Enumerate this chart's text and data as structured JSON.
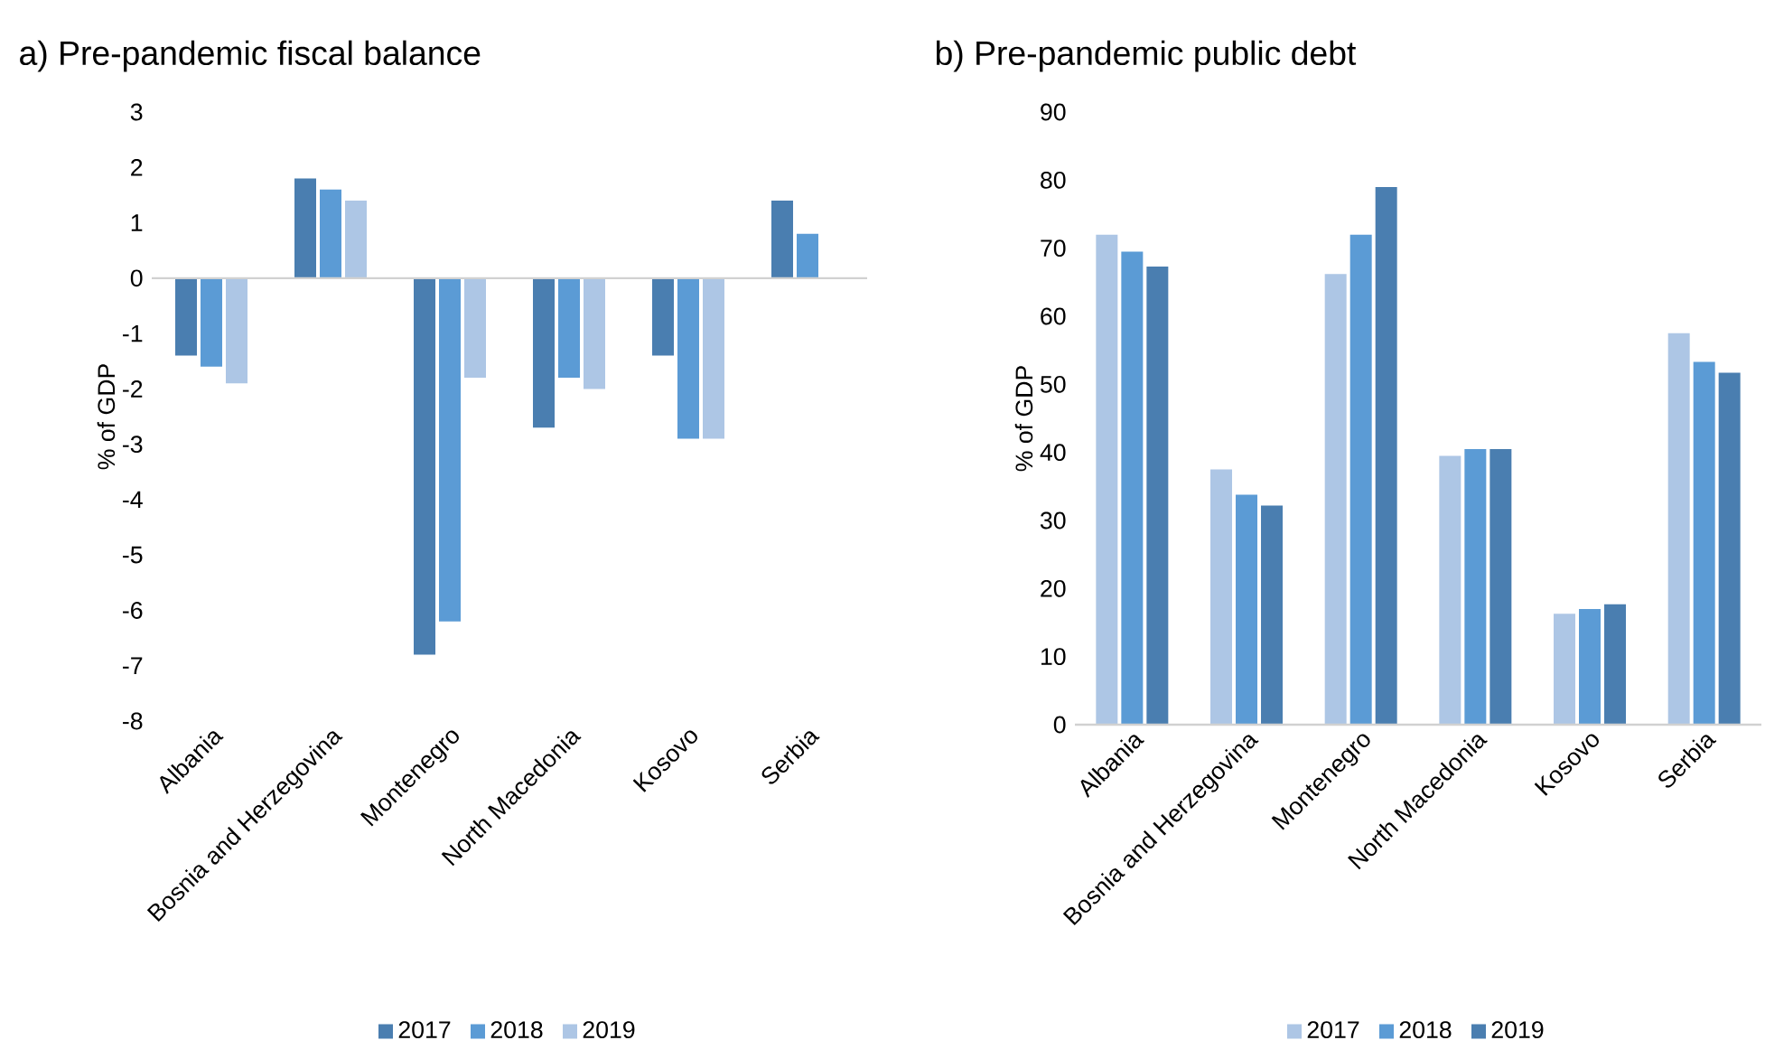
{
  "chart_data": [
    {
      "type": "bar",
      "title": "a) Pre-pandemic fiscal balance",
      "ylabel": "% of GDP",
      "categories": [
        "Albania",
        "Bosnia and Herzegovina",
        "Montenegro",
        "North Macedonia",
        "Kosovo",
        "Serbia"
      ],
      "series": [
        {
          "name": "2017",
          "color": "#4a7eb0",
          "values": [
            -1.4,
            1.8,
            -6.8,
            -2.7,
            -1.4,
            1.4
          ]
        },
        {
          "name": "2018",
          "color": "#5b9bd5",
          "values": [
            -1.6,
            1.6,
            -6.2,
            -1.8,
            -2.9,
            0.8
          ]
        },
        {
          "name": "2019",
          "color": "#adc6e5",
          "values": [
            -1.9,
            1.4,
            -1.8,
            -2.0,
            -2.9,
            null
          ]
        }
      ],
      "ylim": [
        -8,
        3
      ],
      "yticks": [
        -8,
        -7,
        -6,
        -5,
        -4,
        -3,
        -2,
        -1,
        0,
        1,
        2,
        3
      ],
      "legend": "bottom"
    },
    {
      "type": "bar",
      "title": "b) Pre-pandemic public debt",
      "ylabel": "% of GDP",
      "categories": [
        "Albania",
        "Bosnia and Herzegovina",
        "Montenegro",
        "North Macedonia",
        "Kosovo",
        "Serbia"
      ],
      "series": [
        {
          "name": "2017",
          "color": "#adc6e5",
          "values": [
            72,
            37.5,
            66.2,
            39.5,
            16.3,
            57.5
          ]
        },
        {
          "name": "2018",
          "color": "#5b9bd5",
          "values": [
            69.5,
            33.8,
            72,
            40.5,
            17,
            53.3
          ]
        },
        {
          "name": "2019",
          "color": "#4a7eb0",
          "values": [
            67.3,
            32.2,
            79,
            40.5,
            17.7,
            51.7
          ]
        }
      ],
      "ylim": [
        0,
        90
      ],
      "yticks": [
        0,
        10,
        20,
        30,
        40,
        50,
        60,
        70,
        80,
        90
      ],
      "legend": "bottom"
    }
  ]
}
